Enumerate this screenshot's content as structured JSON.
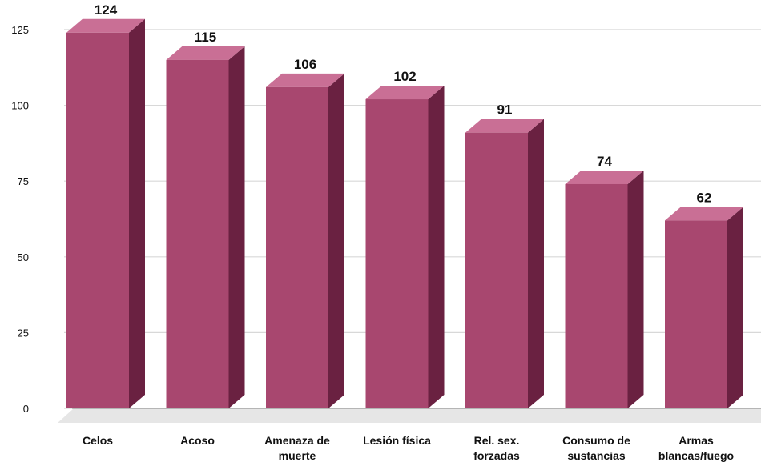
{
  "chart_data": {
    "type": "bar",
    "style": "3d",
    "categories": [
      [
        "Celos"
      ],
      [
        "Acoso"
      ],
      [
        "Amenaza de",
        "muerte"
      ],
      [
        "Lesión física"
      ],
      [
        "Rel. sex.",
        "forzadas"
      ],
      [
        "Consumo de",
        "sustancias"
      ],
      [
        "Armas",
        "blancas/fuego"
      ]
    ],
    "values": [
      124,
      115,
      106,
      102,
      91,
      74,
      62
    ],
    "ylim": [
      0,
      125
    ],
    "yticks": [
      0,
      25,
      50,
      75,
      100,
      125
    ],
    "grid": true,
    "title": "",
    "xlabel": "",
    "ylabel": "",
    "colors": {
      "front": "#a8476f",
      "side": "#6a2141",
      "top": "#c96f95",
      "floor": "#e6e6e6",
      "grid": "#d8d8d8"
    }
  }
}
